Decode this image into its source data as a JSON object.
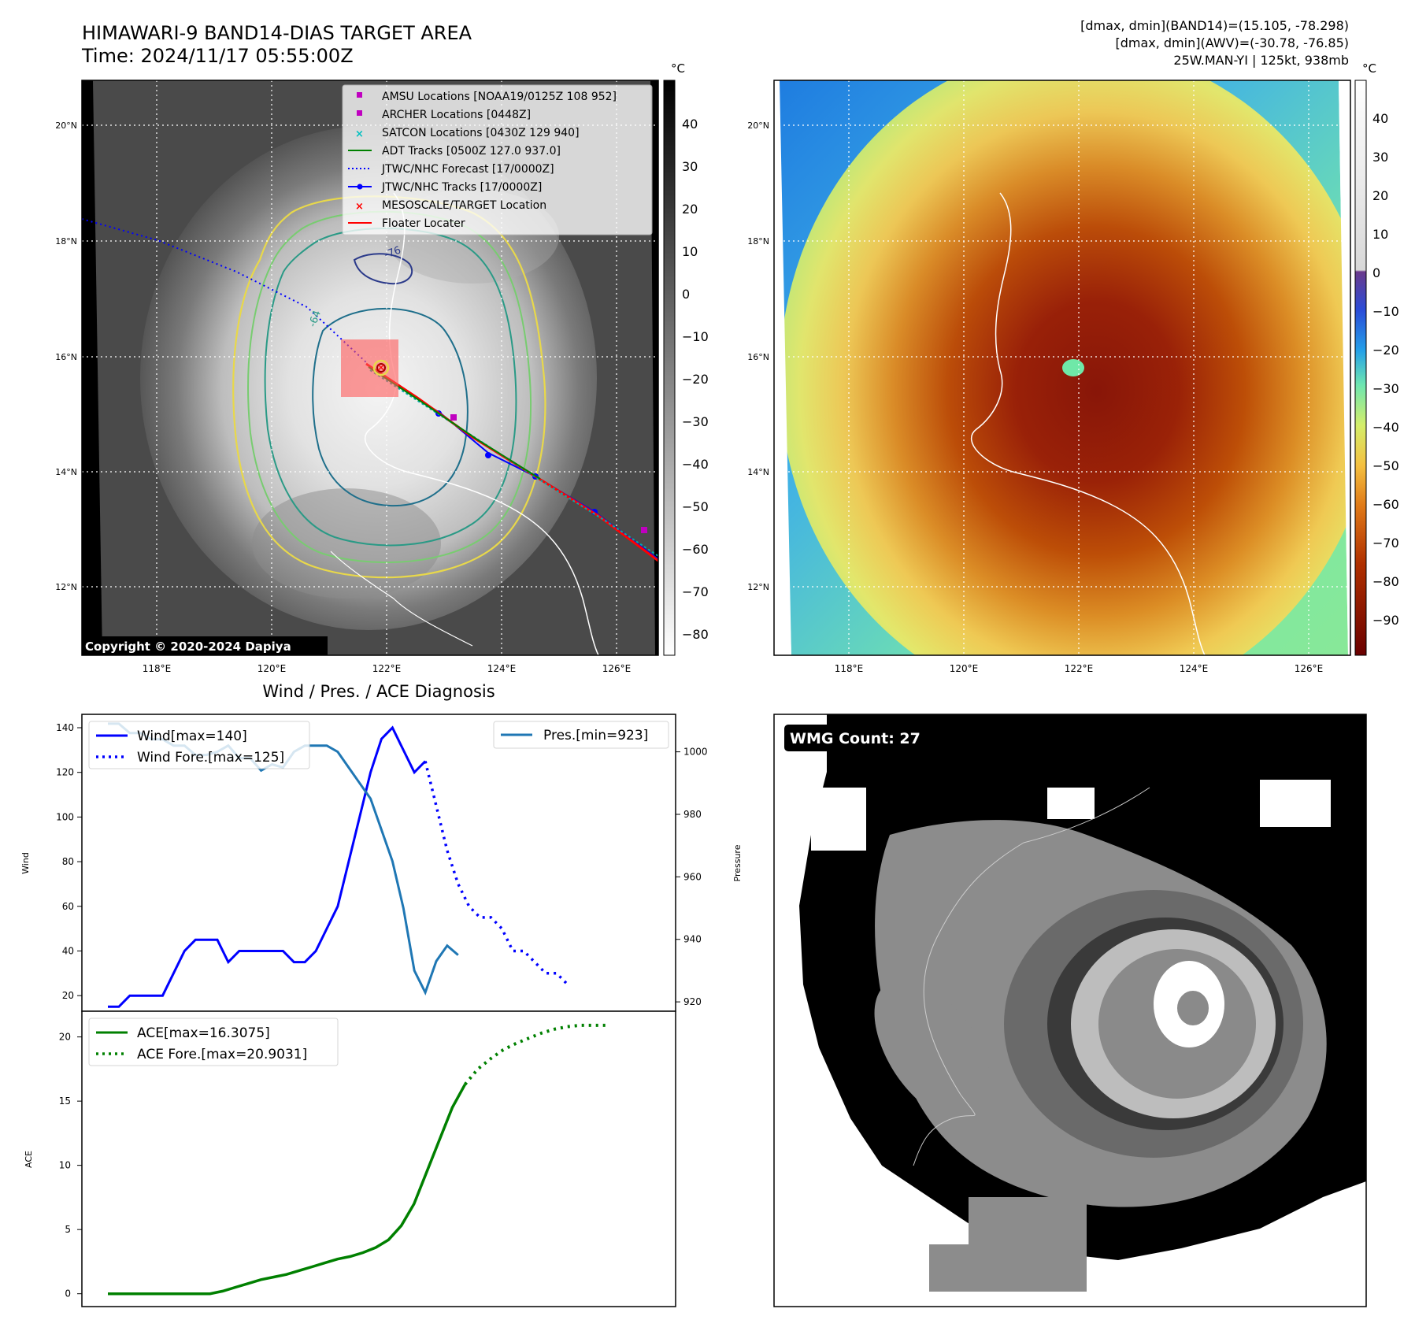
{
  "header": {
    "title": "HIMAWARI-9 BAND14-DIAS TARGET AREA",
    "time": "Time: 2024/11/17 05:55:00Z",
    "dmax_band14": "[dmax, dmin](BAND14)=(15.105, -78.298)",
    "dmax_awv": "[dmax, dmin](AWV)=(-30.78, -76.85)",
    "storm": "25W.MAN-YI | 125kt, 938mb"
  },
  "map_ir": {
    "unit": "°C",
    "copyright": "Copyright © 2020-2024 Dapiya",
    "lat_ticks": [
      "20°N",
      "18°N",
      "16°N",
      "14°N",
      "12°N"
    ],
    "lon_ticks": [
      "118°E",
      "120°E",
      "122°E",
      "124°E",
      "126°E"
    ],
    "colorbar_ticks": [
      "40",
      "30",
      "20",
      "10",
      "0",
      "−10",
      "−20",
      "−30",
      "−40",
      "−50",
      "−60",
      "−70",
      "−80"
    ],
    "legend": [
      {
        "label": "AMSU Locations [NOAA19/0125Z 108 952]",
        "color": "#c000c0",
        "marker": "square"
      },
      {
        "label": "ARCHER Locations [0448Z]",
        "color": "#c000c0",
        "marker": "square"
      },
      {
        "label": "SATCON Locations [0430Z 129 940]",
        "color": "#00c0c0",
        "marker": "x"
      },
      {
        "label": "ADT Tracks [0500Z 127.0 937.0]",
        "color": "#008000",
        "marker": "line"
      },
      {
        "label": "JTWC/NHC Forecast [17/0000Z]",
        "color": "#0000ff",
        "marker": "dotted"
      },
      {
        "label": "JTWC/NHC Tracks [17/0000Z]",
        "color": "#0000ff",
        "marker": "line-dot"
      },
      {
        "label": "MESOSCALE/TARGET Location",
        "color": "#ff0000",
        "marker": "x"
      },
      {
        "label": "Floater Locater",
        "color": "#ff0000",
        "marker": "line"
      }
    ],
    "contour_label_1": "-64",
    "contour_label_2": "-76"
  },
  "map_awv": {
    "unit": "°C",
    "lat_ticks": [
      "20°N",
      "18°N",
      "16°N",
      "14°N",
      "12°N"
    ],
    "lon_ticks": [
      "118°E",
      "120°E",
      "122°E",
      "124°E",
      "126°E"
    ],
    "colorbar_ticks": [
      "40",
      "30",
      "20",
      "10",
      "0",
      "−10",
      "−20",
      "−30",
      "−40",
      "−50",
      "−60",
      "−70",
      "−80",
      "−90"
    ]
  },
  "wmg": {
    "label": "WMG Count: 27"
  },
  "chart_data": [
    {
      "type": "line",
      "title": "Wind / Pres. / ACE Diagnosis",
      "ylabel": "Wind",
      "ylabel_right": "Pressure",
      "ylim": [
        13,
        146
      ],
      "ylim_right": [
        917,
        1012
      ],
      "y_ticks": [
        20,
        40,
        60,
        80,
        100,
        120,
        140
      ],
      "y_ticks_right": [
        920,
        940,
        960,
        980,
        1000
      ],
      "legend_left": [
        "Wind[max=140]",
        "Wind Fore.[max=125]"
      ],
      "legend_right": [
        "Pres.[min=923]"
      ],
      "series": [
        {
          "name": "Wind[max=140]",
          "color": "#0000ff",
          "style": "solid",
          "values": [
            15,
            15,
            20,
            20,
            20,
            20,
            30,
            40,
            45,
            45,
            45,
            35,
            40,
            40,
            40,
            40,
            40,
            35,
            35,
            40,
            50,
            60,
            80,
            100,
            120,
            135,
            140,
            130,
            120,
            125
          ]
        },
        {
          "name": "Wind Fore.[max=125]",
          "color": "#0000ff",
          "style": "dotted",
          "x_start": 29,
          "values": [
            125,
            105,
            85,
            70,
            60,
            55,
            55,
            50,
            40,
            40,
            35,
            30,
            30,
            25
          ]
        },
        {
          "name": "Pres.[min=923]",
          "color": "#1f77b4",
          "style": "solid",
          "axis": "right",
          "values": [
            1009,
            1009,
            1006,
            1006,
            1004,
            1004,
            1002,
            1002,
            999,
            999,
            1000,
            1002,
            998,
            998,
            994,
            996,
            995,
            1000,
            1002,
            1002,
            1002,
            1000,
            995,
            990,
            985,
            975,
            965,
            950,
            930,
            923,
            933,
            938,
            935
          ]
        }
      ]
    },
    {
      "type": "line",
      "ylabel": "ACE",
      "ylim": [
        -1,
        22
      ],
      "y_ticks": [
        0,
        5,
        10,
        15,
        20
      ],
      "legend": [
        "ACE[max=16.3075]",
        "ACE Fore.[max=20.9031]"
      ],
      "series": [
        {
          "name": "ACE[max=16.3075]",
          "color": "#008000",
          "style": "solid",
          "values": [
            0,
            0,
            0,
            0,
            0,
            0,
            0,
            0,
            0,
            0.2,
            0.5,
            0.8,
            1.1,
            1.3,
            1.5,
            1.8,
            2.1,
            2.4,
            2.7,
            2.9,
            3.2,
            3.6,
            4.2,
            5.3,
            7,
            9.5,
            12,
            14.5,
            16.3075
          ]
        },
        {
          "name": "ACE Fore.[max=20.9031]",
          "color": "#008000",
          "style": "dotted",
          "x_start": 28,
          "values": [
            16.3075,
            17.5,
            18.3,
            19,
            19.5,
            19.9,
            20.3,
            20.6,
            20.8,
            20.9031,
            20.9031,
            20.9031
          ]
        }
      ]
    }
  ]
}
